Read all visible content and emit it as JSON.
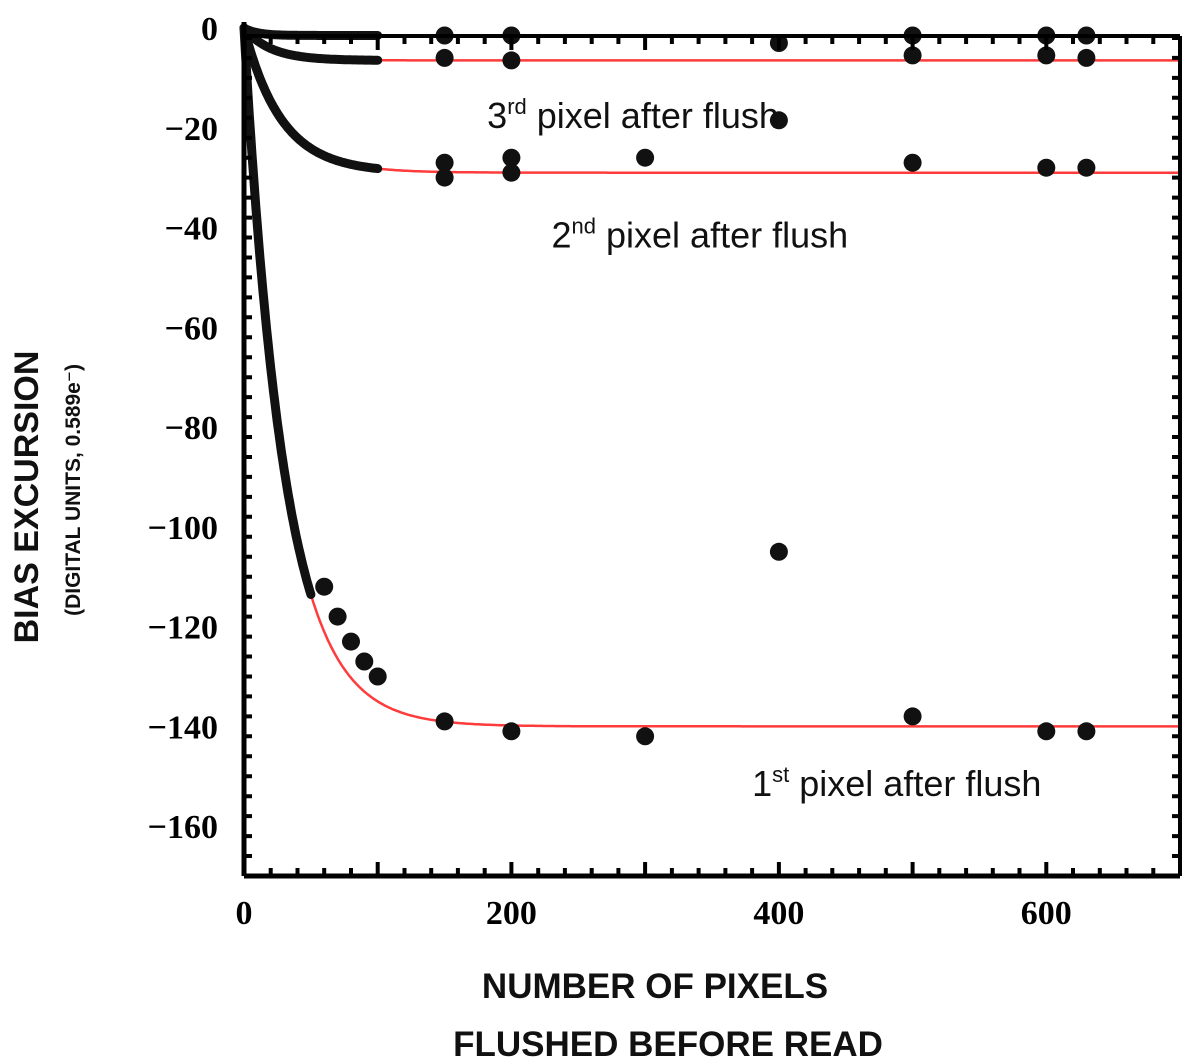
{
  "chart_data": {
    "type": "scatter",
    "title": "",
    "xlabel": [
      "NUMBER OF PIXELS",
      "FLUSHED BEFORE READ"
    ],
    "ylabel": "BIAS EXCURSION",
    "ylabel_sub": "(DIGITAL UNITS, 0.589e⁻)",
    "xlim": [
      0,
      700
    ],
    "ylim": [
      -170,
      0
    ],
    "xticks": [
      {
        "value": 0,
        "label": "0"
      },
      {
        "value": 200,
        "label": "200"
      },
      {
        "value": 400,
        "label": "400"
      },
      {
        "value": 600,
        "label": "600"
      }
    ],
    "yticks": [
      {
        "value": 0,
        "label": "0"
      },
      {
        "value": -20,
        "label": "−20"
      },
      {
        "value": -40,
        "label": "−40"
      },
      {
        "value": -60,
        "label": "−60"
      },
      {
        "value": -80,
        "label": "−80"
      },
      {
        "value": -100,
        "label": "−100"
      },
      {
        "value": -120,
        "label": "−120"
      },
      {
        "value": -140,
        "label": "−140"
      },
      {
        "value": -160,
        "label": "−160"
      }
    ],
    "grid": false,
    "fit_color": "#ff3b3b",
    "point_color": "#111111",
    "series": [
      {
        "fit": {
          "amplitude": -140,
          "tau": 30
        },
        "dense_range": [
          1,
          50
        ],
        "points": [
          {
            "x": 60,
            "y": -112
          },
          {
            "x": 70,
            "y": -118
          },
          {
            "x": 80,
            "y": -123
          },
          {
            "x": 90,
            "y": -127
          },
          {
            "x": 100,
            "y": -130
          },
          {
            "x": 150,
            "y": -139
          },
          {
            "x": 200,
            "y": -141
          },
          {
            "x": 300,
            "y": -142
          },
          {
            "x": 400,
            "y": -105
          },
          {
            "x": 500,
            "y": -138
          },
          {
            "x": 600,
            "y": -141
          },
          {
            "x": 630,
            "y": -141
          }
        ]
      },
      {
        "fit": {
          "amplitude": -29,
          "tau": 28
        },
        "dense_range": [
          1,
          100
        ],
        "points": [
          {
            "x": 150,
            "y": -27
          },
          {
            "x": 150,
            "y": -30
          },
          {
            "x": 200,
            "y": -26
          },
          {
            "x": 200,
            "y": -29
          },
          {
            "x": 300,
            "y": -26
          },
          {
            "x": 500,
            "y": -27
          },
          {
            "x": 600,
            "y": -28
          },
          {
            "x": 630,
            "y": -28
          }
        ]
      },
      {
        "fit": {
          "amplitude": -6.5,
          "tau": 20
        },
        "dense_range": [
          1,
          100
        ],
        "points": [
          {
            "x": 150,
            "y": -6
          },
          {
            "x": 200,
            "y": -6.5
          },
          {
            "x": 400,
            "y": -18.5
          },
          {
            "x": 500,
            "y": -5.5
          },
          {
            "x": 600,
            "y": -5.5
          },
          {
            "x": 630,
            "y": -6
          }
        ]
      },
      {
        "fit": {
          "amplitude": -1.5,
          "tau": 10
        },
        "dense_range": [
          1,
          100
        ],
        "points": [
          {
            "x": 150,
            "y": -1.5
          },
          {
            "x": 200,
            "y": -1.5
          },
          {
            "x": 400,
            "y": -3
          },
          {
            "x": 500,
            "y": -1.5
          },
          {
            "x": 600,
            "y": -1.5
          },
          {
            "x": 630,
            "y": -1.5
          }
        ]
      }
    ],
    "annotations": [
      {
        "x": 400,
        "y": -20,
        "anchor": "end",
        "base": "3",
        "sup": "rd",
        "text": " pixel after flush"
      },
      {
        "x": 230,
        "y": -44,
        "anchor": "start",
        "base": "2",
        "sup": "nd",
        "text": " pixel after flush"
      },
      {
        "x": 380,
        "y": -154,
        "anchor": "start",
        "base": "1",
        "sup": "st",
        "text": " pixel after flush"
      }
    ]
  }
}
